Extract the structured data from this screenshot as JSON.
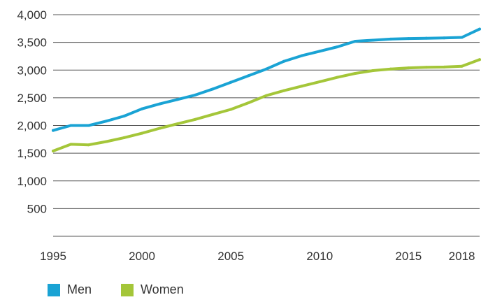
{
  "chart_data": {
    "type": "line",
    "title": "",
    "xlabel": "",
    "ylabel": "",
    "xlim": [
      1995,
      2019
    ],
    "ylim": [
      0,
      4000
    ],
    "x_ticks": [
      1995,
      2000,
      2005,
      2010,
      2015,
      2018
    ],
    "y_ticks": [
      500,
      1000,
      1500,
      2000,
      2500,
      3000,
      3500,
      4000
    ],
    "y_tick_labels": [
      "500",
      "1,000",
      "1,500",
      "2,000",
      "2,500",
      "3,000",
      "3,500",
      "4,000"
    ],
    "grid": "horizontal",
    "legend_position": "bottom-left",
    "series": [
      {
        "name": "Men",
        "color": "#1aa3d4",
        "x": [
          1995,
          1996,
          1997,
          1998,
          1999,
          2000,
          2001,
          2002,
          2003,
          2004,
          2005,
          2006,
          2007,
          2008,
          2009,
          2010,
          2011,
          2012,
          2013,
          2014,
          2015,
          2016,
          2017,
          2018,
          2019
        ],
        "values": [
          1910,
          2000,
          2000,
          2080,
          2170,
          2300,
          2390,
          2470,
          2550,
          2660,
          2780,
          2900,
          3020,
          3160,
          3260,
          3340,
          3420,
          3520,
          3540,
          3560,
          3570,
          3575,
          3580,
          3590,
          3740
        ]
      },
      {
        "name": "Women",
        "color": "#a4c639",
        "x": [
          1995,
          1996,
          1997,
          1998,
          1999,
          2000,
          2001,
          2002,
          2003,
          2004,
          2005,
          2006,
          2007,
          2008,
          2009,
          2010,
          2011,
          2012,
          2013,
          2014,
          2015,
          2016,
          2017,
          2018,
          2019
        ],
        "values": [
          1540,
          1660,
          1650,
          1710,
          1780,
          1860,
          1950,
          2030,
          2110,
          2200,
          2290,
          2410,
          2540,
          2630,
          2710,
          2790,
          2870,
          2940,
          2990,
          3020,
          3040,
          3050,
          3055,
          3070,
          3190
        ]
      }
    ]
  }
}
